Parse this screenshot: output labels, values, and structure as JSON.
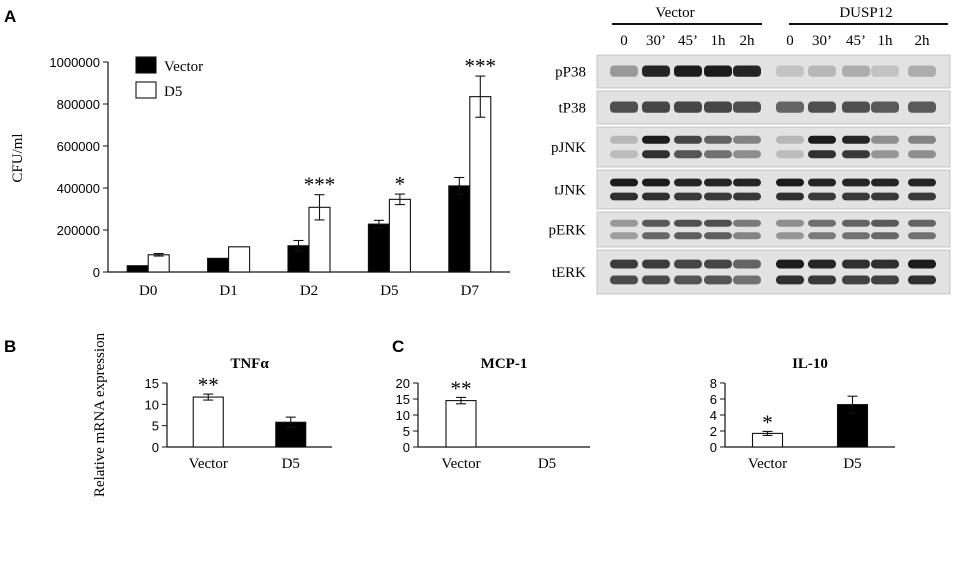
{
  "panels": {
    "a": "A",
    "b": "B",
    "c": "C"
  },
  "chart_data": [
    {
      "id": "cfu",
      "type": "bar",
      "ylabel": "CFU/ml",
      "ylim": [
        0,
        1000000
      ],
      "yticks": [
        0,
        200000,
        400000,
        600000,
        800000,
        1000000
      ],
      "categories": [
        "D0",
        "D1",
        "D2",
        "D5",
        "D7"
      ],
      "legend": "top-left",
      "series": [
        {
          "name": "Vector",
          "fill": "#000000",
          "values": [
            30000,
            65000,
            125000,
            228000,
            410000
          ],
          "errors": [
            0,
            0,
            25000,
            18000,
            40000
          ]
        },
        {
          "name": "D5",
          "fill": "#ffffff",
          "values": [
            82000,
            120000,
            308000,
            346000,
            835000
          ],
          "errors": [
            6000,
            0,
            60000,
            25000,
            98000
          ]
        }
      ],
      "annotations": [
        "",
        "",
        "***",
        "*",
        "***"
      ]
    },
    {
      "id": "tnfa",
      "type": "bar",
      "title": "TNFα",
      "ylabel": "Relative mRNA expression",
      "ylim": [
        0,
        15
      ],
      "yticks": [
        0,
        5,
        10,
        15
      ],
      "categories": [
        "Vector",
        "D5"
      ],
      "values": [
        11.7,
        5.8
      ],
      "errors": [
        0.7,
        1.2
      ],
      "fills": [
        "#ffffff",
        "#000000"
      ],
      "annotations": [
        "**",
        ""
      ]
    },
    {
      "id": "mcp1",
      "type": "bar",
      "title": "MCP-1",
      "ylim": [
        0,
        20
      ],
      "yticks": [
        0,
        5,
        10,
        15,
        20
      ],
      "categories": [
        "Vector",
        "D5"
      ],
      "values": [
        14.5,
        0
      ],
      "errors": [
        1.0,
        0
      ],
      "fills": [
        "#ffffff",
        "#000000"
      ],
      "annotations": [
        "**",
        ""
      ]
    },
    {
      "id": "il10",
      "type": "bar",
      "title": "IL-10",
      "ylim": [
        0,
        8
      ],
      "yticks": [
        0,
        2,
        4,
        6,
        8
      ],
      "categories": [
        "Vector",
        "D5"
      ],
      "values": [
        1.7,
        5.3
      ],
      "errors": [
        0.25,
        1.05
      ],
      "fills": [
        "#ffffff",
        "#000000"
      ],
      "annotations": [
        "*",
        ""
      ]
    }
  ],
  "blot": {
    "groups": [
      "Vector",
      "DUSP12"
    ],
    "timepoints": [
      "0",
      "30’",
      "45’",
      "1h",
      "2h",
      "0",
      "30’",
      "45’",
      "1h",
      "2h"
    ],
    "rows": [
      "pP38",
      "tP38",
      "pJNK",
      "tJNK",
      "pERK",
      "tERK"
    ]
  }
}
